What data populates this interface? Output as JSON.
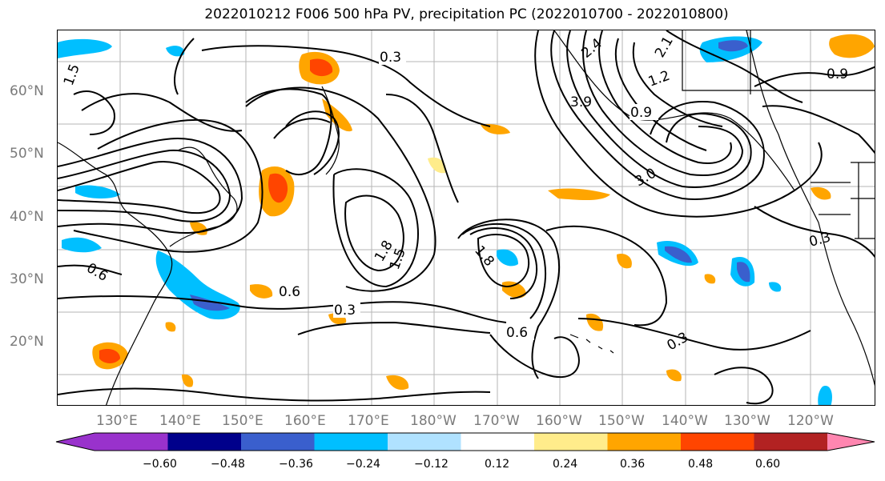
{
  "title": "2022010212 F006 500 hPa PV, precipitation PC (2022010700 - 2022010800)",
  "lat_labels": [
    "60°N",
    "50°N",
    "40°N",
    "30°N",
    "20°N"
  ],
  "lon_labels": [
    "130°E",
    "140°E",
    "150°E",
    "160°E",
    "170°E",
    "180°W",
    "170°W",
    "160°W",
    "150°W",
    "140°W",
    "130°W",
    "120°W"
  ],
  "colorbar": {
    "tick_labels": [
      "−0.60",
      "−0.48",
      "−0.36",
      "−0.24",
      "−0.12",
      "0.12",
      "0.24",
      "0.36",
      "0.48",
      "0.60"
    ],
    "colors": [
      "#9932cc",
      "#00008b",
      "#3a5fcd",
      "#00bfff",
      "#b0e2ff",
      "#ffffff",
      "#ffec8b",
      "#ffa500",
      "#ff4500",
      "#b22222",
      "#ff86b0"
    ]
  },
  "contour_labels": [
    "0.3",
    "0.6",
    "0.9",
    "1.2",
    "1.5",
    "1.8",
    "2.1",
    "2.4",
    "3.0",
    "3.9",
    "0.6",
    "0.3",
    "0.9",
    "0.3",
    "0.6",
    "0.3",
    "1.5",
    "1.8"
  ],
  "map": {
    "projection": "equirectangular",
    "lon_range": [
      "120°E",
      "110°W"
    ],
    "lat_range": [
      "10°N",
      "70°N"
    ],
    "gridlines": true,
    "coastlines": true
  }
}
